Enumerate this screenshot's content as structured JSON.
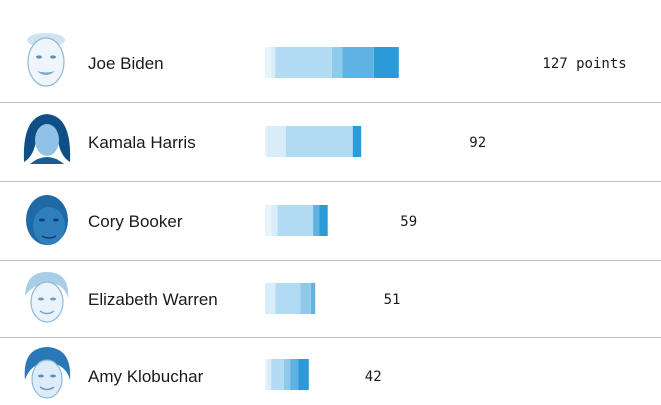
{
  "chart_data": {
    "type": "bar",
    "stacked": true,
    "orientation": "horizontal",
    "categories": [
      "Joe Biden",
      "Kamala Harris",
      "Cory Booker",
      "Elizabeth Warren",
      "Amy Klobuchar"
    ],
    "totals": [
      127,
      92,
      59,
      51,
      42
    ],
    "value_labels": [
      "127 points",
      "92",
      "59",
      "51",
      "42"
    ],
    "segments": [
      [
        3,
        2,
        27,
        5,
        15,
        12
      ],
      [
        1,
        9,
        32,
        0,
        0,
        4
      ],
      [
        3,
        3,
        17,
        0,
        3,
        4
      ],
      [
        0,
        5,
        12,
        5,
        2,
        0
      ],
      [
        1,
        2,
        6,
        3,
        4,
        5
      ]
    ],
    "segment_colors": [
      "#e8f4fb",
      "#d8edf9",
      "#b0dbf2",
      "#8fcaeb",
      "#5fb3e3",
      "#2b9bd8"
    ]
  }
}
